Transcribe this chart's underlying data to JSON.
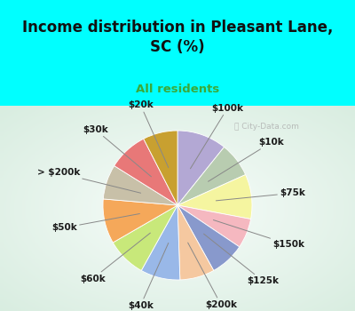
{
  "title": "Income distribution in Pleasant Lane,\nSC (%)",
  "subtitle": "All residents",
  "background_top": "#00FFFF",
  "background_chart_color": "#d8ede0",
  "watermark": "City-Data.com",
  "labels": [
    "$100k",
    "$10k",
    "$75k",
    "$150k",
    "$125k",
    "$200k",
    "$40k",
    "$60k",
    "$50k",
    "> $200k",
    "$30k",
    "$20k"
  ],
  "sizes": [
    10,
    7,
    9,
    6,
    7,
    7,
    8,
    8,
    9,
    7,
    8,
    7
  ],
  "colors": [
    "#b3a8d4",
    "#b8ccb0",
    "#f5f5a0",
    "#f5b8c0",
    "#8899cc",
    "#f5c8a0",
    "#99b8e8",
    "#c8e87a",
    "#f5a85a",
    "#c8c0a8",
    "#e87878",
    "#c8a030"
  ],
  "label_fontsize": 7.5,
  "title_fontsize": 12,
  "subtitle_fontsize": 9.5,
  "title_color": "#111111",
  "subtitle_color": "#3aaa3a"
}
